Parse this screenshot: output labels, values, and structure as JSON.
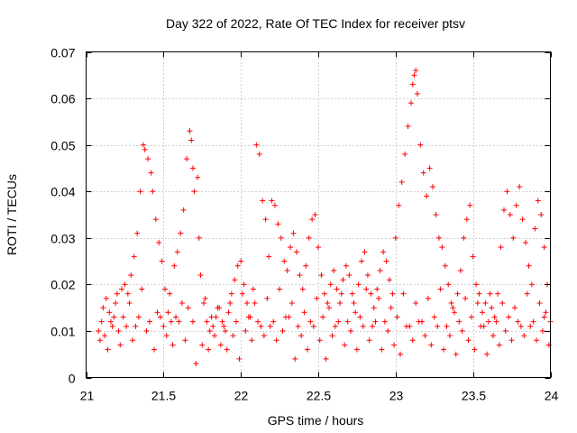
{
  "chart_data": {
    "type": "scatter",
    "title": "Day 322 of 2022, Rate Of TEC Index for receiver ptsv",
    "xlabel": "GPS time / hours",
    "ylabel": "ROTI / TECUs",
    "xlim": [
      21,
      24
    ],
    "ylim": [
      0,
      0.07
    ],
    "xticks": [
      21,
      21.5,
      22,
      22.5,
      23,
      23.5,
      24
    ],
    "xtick_labels": [
      "21",
      "21.5",
      "22",
      "22.5",
      "23",
      "23.5",
      "24"
    ],
    "yticks": [
      0,
      0.01,
      0.02,
      0.03,
      0.04,
      0.05,
      0.06,
      0.07
    ],
    "ytick_labels": [
      "0",
      "0.01",
      "0.02",
      "0.03",
      "0.04",
      "0.05",
      "0.06",
      "0.07"
    ],
    "grid": true,
    "legend": "none",
    "marker": "plus",
    "color": "#ff0000",
    "series": [
      {
        "points": [
          [
            21.08,
            0.01
          ],
          [
            21.1,
            0.012
          ],
          [
            21.12,
            0.009
          ],
          [
            21.15,
            0.014
          ],
          [
            21.17,
            0.011
          ],
          [
            21.19,
            0.016
          ],
          [
            21.21,
            0.01
          ],
          [
            21.23,
            0.019
          ],
          [
            21.25,
            0.02
          ],
          [
            21.27,
            0.018
          ],
          [
            21.29,
            0.022
          ],
          [
            21.31,
            0.026
          ],
          [
            21.33,
            0.031
          ],
          [
            21.35,
            0.04
          ],
          [
            21.37,
            0.05
          ],
          [
            21.38,
            0.049
          ],
          [
            21.4,
            0.047
          ],
          [
            21.42,
            0.044
          ],
          [
            21.43,
            0.04
          ],
          [
            21.45,
            0.034
          ],
          [
            21.47,
            0.029
          ],
          [
            21.49,
            0.025
          ],
          [
            21.51,
            0.019
          ],
          [
            21.53,
            0.014
          ],
          [
            21.55,
            0.012
          ],
          [
            21.57,
            0.024
          ],
          [
            21.59,
            0.027
          ],
          [
            21.61,
            0.031
          ],
          [
            21.63,
            0.036
          ],
          [
            21.65,
            0.047
          ],
          [
            21.67,
            0.053
          ],
          [
            21.68,
            0.051
          ],
          [
            21.69,
            0.045
          ],
          [
            21.7,
            0.04
          ],
          [
            21.72,
            0.043
          ],
          [
            21.73,
            0.03
          ],
          [
            21.74,
            0.022
          ],
          [
            21.76,
            0.016
          ],
          [
            21.78,
            0.012
          ],
          [
            21.8,
            0.01
          ],
          [
            21.82,
            0.011
          ],
          [
            21.84,
            0.013
          ],
          [
            21.86,
            0.015
          ],
          [
            21.88,
            0.012
          ],
          [
            21.9,
            0.01
          ],
          [
            21.92,
            0.014
          ],
          [
            21.94,
            0.018
          ],
          [
            21.96,
            0.021
          ],
          [
            21.98,
            0.024
          ],
          [
            22.0,
            0.025
          ],
          [
            22.02,
            0.02
          ],
          [
            22.04,
            0.016
          ],
          [
            22.06,
            0.013
          ],
          [
            22.08,
            0.019
          ],
          [
            22.1,
            0.05
          ],
          [
            22.12,
            0.048
          ],
          [
            22.14,
            0.038
          ],
          [
            22.16,
            0.034
          ],
          [
            22.18,
            0.026
          ],
          [
            22.2,
            0.038
          ],
          [
            22.22,
            0.037
          ],
          [
            22.24,
            0.033
          ],
          [
            22.26,
            0.03
          ],
          [
            22.28,
            0.025
          ],
          [
            22.3,
            0.023
          ],
          [
            22.32,
            0.028
          ],
          [
            22.34,
            0.031
          ],
          [
            22.36,
            0.027
          ],
          [
            22.38,
            0.022
          ],
          [
            22.4,
            0.019
          ],
          [
            22.42,
            0.024
          ],
          [
            22.44,
            0.03
          ],
          [
            22.46,
            0.034
          ],
          [
            22.48,
            0.035
          ],
          [
            22.5,
            0.028
          ],
          [
            22.52,
            0.022
          ],
          [
            22.54,
            0.018
          ],
          [
            22.56,
            0.016
          ],
          [
            22.58,
            0.02
          ],
          [
            22.6,
            0.023
          ],
          [
            22.62,
            0.019
          ],
          [
            22.64,
            0.016
          ],
          [
            22.66,
            0.021
          ],
          [
            22.68,
            0.024
          ],
          [
            22.7,
            0.022
          ],
          [
            22.72,
            0.018
          ],
          [
            22.74,
            0.014
          ],
          [
            22.76,
            0.02
          ],
          [
            22.78,
            0.025
          ],
          [
            22.8,
            0.027
          ],
          [
            22.82,
            0.022
          ],
          [
            22.84,
            0.018
          ],
          [
            22.86,
            0.015
          ],
          [
            22.88,
            0.019
          ],
          [
            22.9,
            0.023
          ],
          [
            22.92,
            0.027
          ],
          [
            22.94,
            0.025
          ],
          [
            22.96,
            0.021
          ],
          [
            22.98,
            0.018
          ],
          [
            23.0,
            0.03
          ],
          [
            23.02,
            0.037
          ],
          [
            23.04,
            0.042
          ],
          [
            23.06,
            0.048
          ],
          [
            23.08,
            0.054
          ],
          [
            23.1,
            0.059
          ],
          [
            23.11,
            0.063
          ],
          [
            23.12,
            0.065
          ],
          [
            23.13,
            0.066
          ],
          [
            23.14,
            0.061
          ],
          [
            23.16,
            0.05
          ],
          [
            23.18,
            0.044
          ],
          [
            23.2,
            0.039
          ],
          [
            23.22,
            0.045
          ],
          [
            23.24,
            0.041
          ],
          [
            23.26,
            0.035
          ],
          [
            23.28,
            0.03
          ],
          [
            23.3,
            0.028
          ],
          [
            23.32,
            0.024
          ],
          [
            23.34,
            0.02
          ],
          [
            23.36,
            0.016
          ],
          [
            23.38,
            0.014
          ],
          [
            23.4,
            0.018
          ],
          [
            23.42,
            0.023
          ],
          [
            23.44,
            0.03
          ],
          [
            23.46,
            0.034
          ],
          [
            23.48,
            0.037
          ],
          [
            23.5,
            0.026
          ],
          [
            23.52,
            0.02
          ],
          [
            23.54,
            0.018
          ],
          [
            23.56,
            0.014
          ],
          [
            23.58,
            0.016
          ],
          [
            23.6,
            0.012
          ],
          [
            23.62,
            0.015
          ],
          [
            23.64,
            0.013
          ],
          [
            23.66,
            0.018
          ],
          [
            23.68,
            0.028
          ],
          [
            23.7,
            0.036
          ],
          [
            23.72,
            0.04
          ],
          [
            23.74,
            0.035
          ],
          [
            23.76,
            0.03
          ],
          [
            23.78,
            0.037
          ],
          [
            23.8,
            0.041
          ],
          [
            23.82,
            0.034
          ],
          [
            23.84,
            0.029
          ],
          [
            23.86,
            0.024
          ],
          [
            23.88,
            0.02
          ],
          [
            23.9,
            0.032
          ],
          [
            23.92,
            0.038
          ],
          [
            23.94,
            0.035
          ],
          [
            23.96,
            0.028
          ],
          [
            23.98,
            0.02
          ],
          [
            24.0,
            0.012
          ],
          [
            21.09,
            0.008
          ],
          [
            21.11,
            0.015
          ],
          [
            21.14,
            0.006
          ],
          [
            21.18,
            0.013
          ],
          [
            21.22,
            0.007
          ],
          [
            21.26,
            0.011
          ],
          [
            21.3,
            0.008
          ],
          [
            21.34,
            0.013
          ],
          [
            21.39,
            0.01
          ],
          [
            21.44,
            0.006
          ],
          [
            21.48,
            0.013
          ],
          [
            21.52,
            0.009
          ],
          [
            21.56,
            0.007
          ],
          [
            21.6,
            0.012
          ],
          [
            21.64,
            0.008
          ],
          [
            21.71,
            0.003
          ],
          [
            21.75,
            0.007
          ],
          [
            21.79,
            0.006
          ],
          [
            21.83,
            0.009
          ],
          [
            21.87,
            0.007
          ],
          [
            21.91,
            0.006
          ],
          [
            21.95,
            0.009
          ],
          [
            21.99,
            0.004
          ],
          [
            22.03,
            0.01
          ],
          [
            22.07,
            0.008
          ],
          [
            22.11,
            0.012
          ],
          [
            22.15,
            0.009
          ],
          [
            22.19,
            0.011
          ],
          [
            22.23,
            0.008
          ],
          [
            22.27,
            0.01
          ],
          [
            22.31,
            0.013
          ],
          [
            22.35,
            0.004
          ],
          [
            22.39,
            0.009
          ],
          [
            22.43,
            0.006
          ],
          [
            22.47,
            0.011
          ],
          [
            22.51,
            0.008
          ],
          [
            22.55,
            0.004
          ],
          [
            22.59,
            0.009
          ],
          [
            22.63,
            0.012
          ],
          [
            22.67,
            0.007
          ],
          [
            22.71,
            0.01
          ],
          [
            22.75,
            0.006
          ],
          [
            22.79,
            0.011
          ],
          [
            22.83,
            0.008
          ],
          [
            22.87,
            0.012
          ],
          [
            22.91,
            0.006
          ],
          [
            22.95,
            0.01
          ],
          [
            22.99,
            0.007
          ],
          [
            23.03,
            0.005
          ],
          [
            23.07,
            0.011
          ],
          [
            23.11,
            0.008
          ],
          [
            23.15,
            0.012
          ],
          [
            23.19,
            0.009
          ],
          [
            23.23,
            0.007
          ],
          [
            23.27,
            0.011
          ],
          [
            23.31,
            0.006
          ],
          [
            23.35,
            0.009
          ],
          [
            23.39,
            0.005
          ],
          [
            23.43,
            0.01
          ],
          [
            23.47,
            0.008
          ],
          [
            23.51,
            0.006
          ],
          [
            23.55,
            0.011
          ],
          [
            23.59,
            0.005
          ],
          [
            23.63,
            0.009
          ],
          [
            23.67,
            0.007
          ],
          [
            23.71,
            0.01
          ],
          [
            23.75,
            0.008
          ],
          [
            23.79,
            0.012
          ],
          [
            23.83,
            0.009
          ],
          [
            23.87,
            0.011
          ],
          [
            23.91,
            0.008
          ],
          [
            23.95,
            0.01
          ],
          [
            23.99,
            0.007
          ],
          [
            21.13,
            0.017
          ],
          [
            21.2,
            0.018
          ],
          [
            21.28,
            0.016
          ],
          [
            21.36,
            0.019
          ],
          [
            21.46,
            0.014
          ],
          [
            21.54,
            0.018
          ],
          [
            21.62,
            0.016
          ],
          [
            21.66,
            0.015
          ],
          [
            21.77,
            0.017
          ],
          [
            21.85,
            0.015
          ],
          [
            21.93,
            0.016
          ],
          [
            22.01,
            0.018
          ],
          [
            22.09,
            0.016
          ],
          [
            22.17,
            0.017
          ],
          [
            22.25,
            0.019
          ],
          [
            22.33,
            0.016
          ],
          [
            22.41,
            0.014
          ],
          [
            22.49,
            0.017
          ],
          [
            22.57,
            0.015
          ],
          [
            22.65,
            0.018
          ],
          [
            22.73,
            0.016
          ],
          [
            22.81,
            0.019
          ],
          [
            22.89,
            0.017
          ],
          [
            22.97,
            0.015
          ],
          [
            23.05,
            0.018
          ],
          [
            23.13,
            0.016
          ],
          [
            23.21,
            0.017
          ],
          [
            23.29,
            0.019
          ],
          [
            23.37,
            0.015
          ],
          [
            23.45,
            0.017
          ],
          [
            23.53,
            0.016
          ],
          [
            23.61,
            0.018
          ],
          [
            23.69,
            0.016
          ],
          [
            23.77,
            0.015
          ],
          [
            23.85,
            0.018
          ],
          [
            23.93,
            0.016
          ],
          [
            23.97,
            0.014
          ],
          [
            21.16,
            0.012
          ],
          [
            21.24,
            0.013
          ],
          [
            21.32,
            0.011
          ],
          [
            21.41,
            0.012
          ],
          [
            21.5,
            0.011
          ],
          [
            21.58,
            0.013
          ],
          [
            21.69,
            0.012
          ],
          [
            21.81,
            0.013
          ],
          [
            21.89,
            0.011
          ],
          [
            21.97,
            0.012
          ],
          [
            22.05,
            0.013
          ],
          [
            22.13,
            0.011
          ],
          [
            22.21,
            0.012
          ],
          [
            22.29,
            0.013
          ],
          [
            22.37,
            0.011
          ],
          [
            22.45,
            0.012
          ],
          [
            22.53,
            0.013
          ],
          [
            22.61,
            0.011
          ],
          [
            22.69,
            0.012
          ],
          [
            22.77,
            0.013
          ],
          [
            22.85,
            0.011
          ],
          [
            22.93,
            0.012
          ],
          [
            23.01,
            0.013
          ],
          [
            23.09,
            0.011
          ],
          [
            23.17,
            0.012
          ],
          [
            23.25,
            0.013
          ],
          [
            23.33,
            0.011
          ],
          [
            23.41,
            0.012
          ],
          [
            23.49,
            0.013
          ],
          [
            23.57,
            0.011
          ],
          [
            23.65,
            0.012
          ],
          [
            23.73,
            0.013
          ],
          [
            23.81,
            0.011
          ],
          [
            23.89,
            0.012
          ],
          [
            23.96,
            0.013
          ]
        ]
      }
    ]
  }
}
